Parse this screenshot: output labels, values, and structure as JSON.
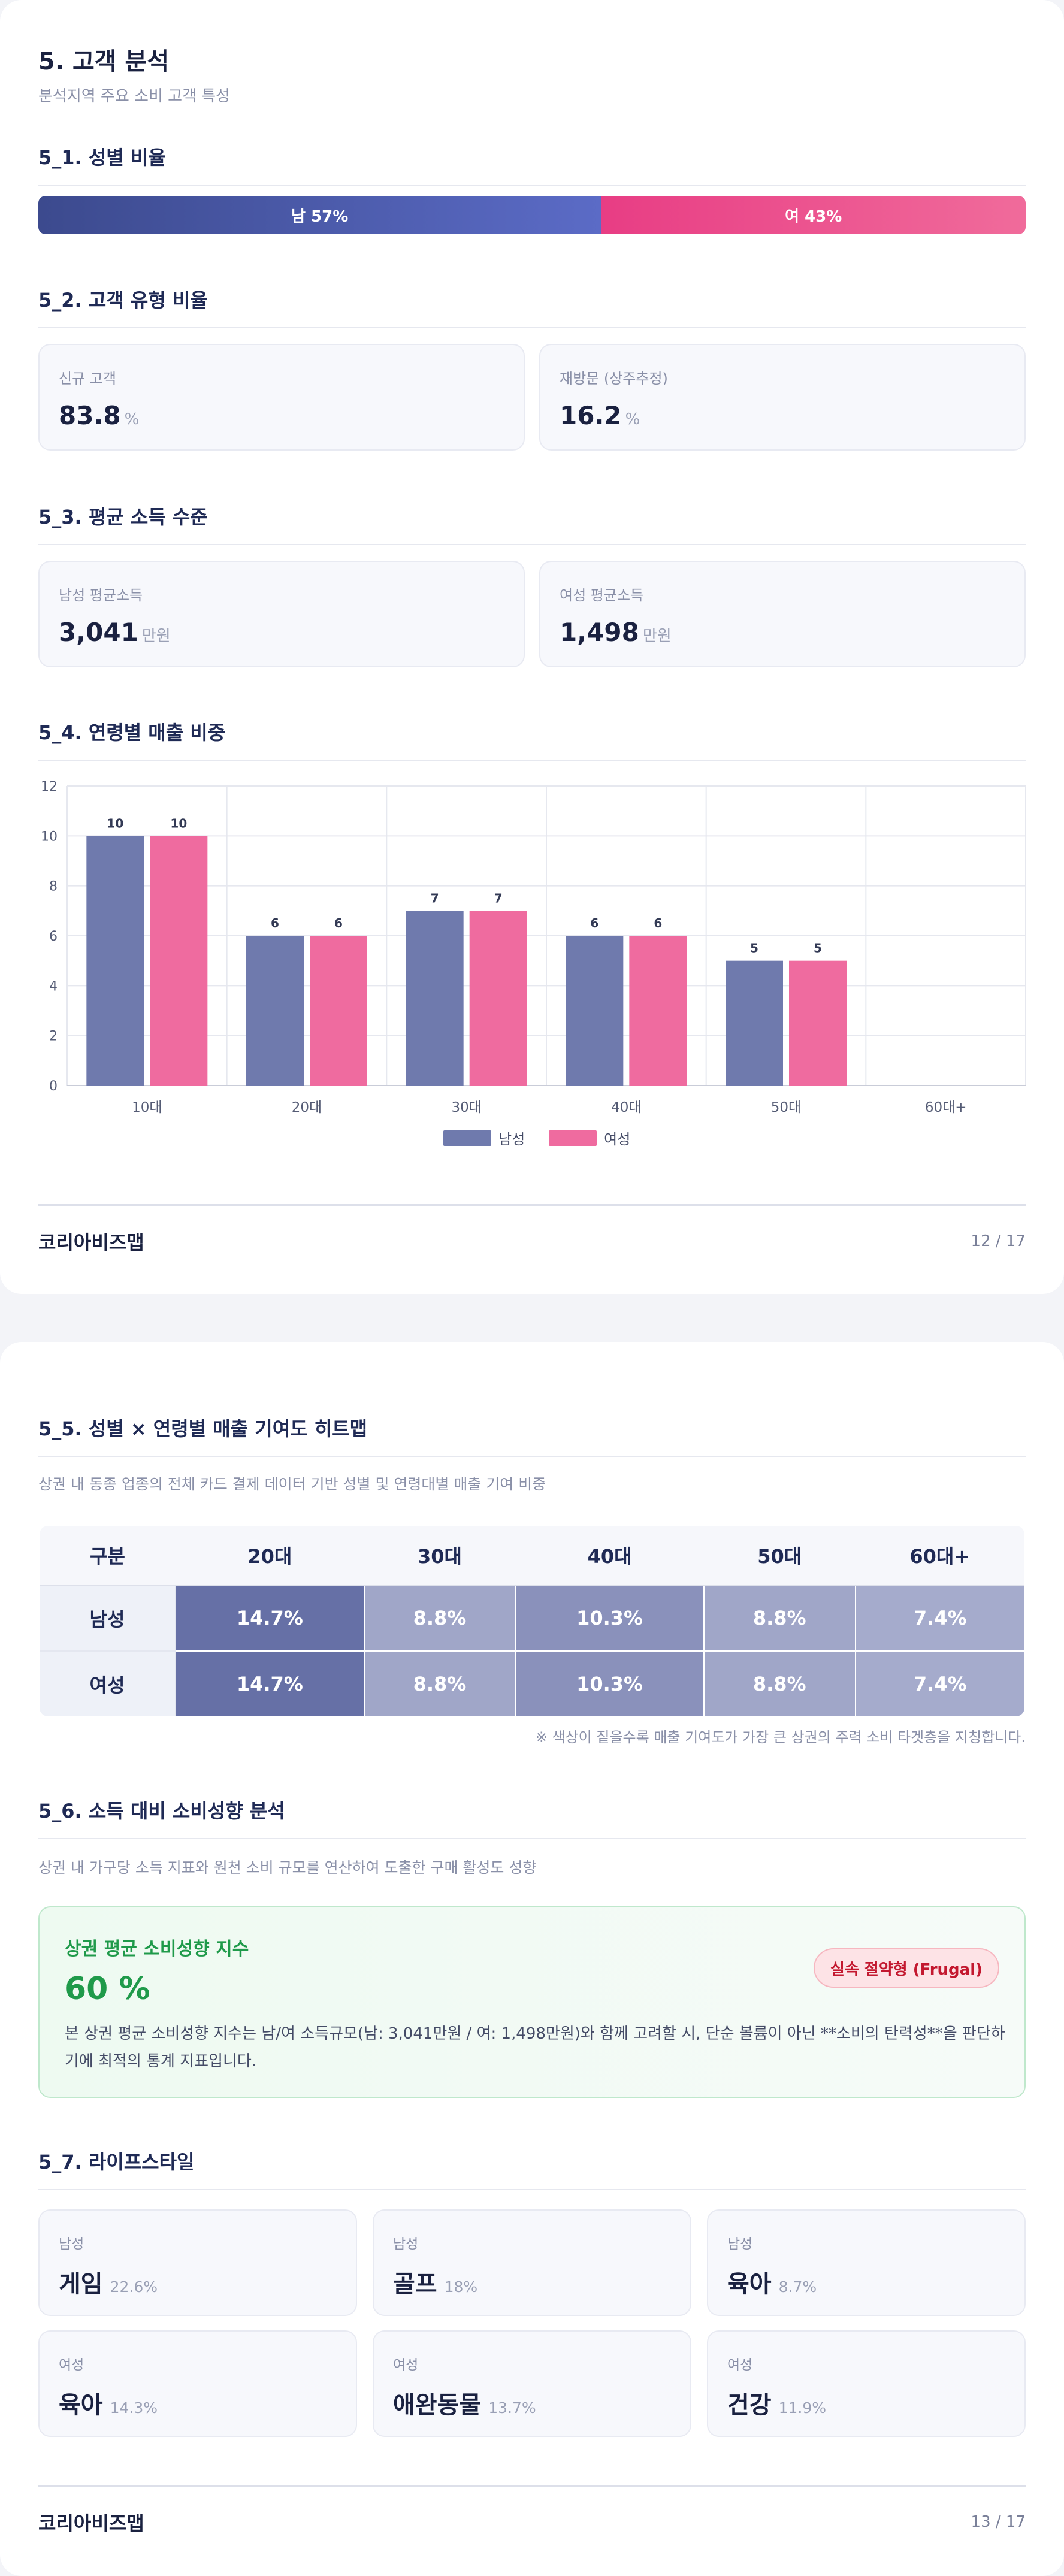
{
  "page1": {
    "title": "5. 고객 분석",
    "subtitle": "분석지역 주요 소비 고객 특성",
    "gender": {
      "title": "5_1. 성별 비율",
      "male_label": "남 57%",
      "female_label": "여 43%",
      "male_share": 57,
      "female_share": 43
    },
    "customer_type": {
      "title": "5_2. 고객 유형 비율",
      "cards": [
        {
          "label": "신규 고객",
          "value": "83.8",
          "unit": "%"
        },
        {
          "label": "재방문 (상주추정)",
          "value": "16.2",
          "unit": "%"
        }
      ]
    },
    "income": {
      "title": "5_3. 평균 소득 수준",
      "cards": [
        {
          "label": "남성 평균소득",
          "value": "3,041",
          "unit": "만원"
        },
        {
          "label": "여성 평균소득",
          "value": "1,498",
          "unit": "만원"
        }
      ]
    },
    "age_sales": {
      "title": "5_4. 연령별 매출 비중"
    },
    "footer": {
      "brand": "코리아비즈맵",
      "page": "12 / 17"
    }
  },
  "chart_data": {
    "type": "bar",
    "categories": [
      "10대",
      "20대",
      "30대",
      "40대",
      "50대",
      "60대+"
    ],
    "series": [
      {
        "name": "남성",
        "values": [
          10,
          6,
          7,
          6,
          5,
          0
        ],
        "labels": [
          "10",
          "6",
          "7",
          "6",
          "5",
          ""
        ],
        "color": "#6f7aad"
      },
      {
        "name": "여성",
        "values": [
          10,
          6,
          7,
          6,
          5,
          0
        ],
        "labels": [
          "10",
          "6",
          "7",
          "6",
          "5",
          ""
        ],
        "color": "#ef6b9f"
      }
    ],
    "ylim": [
      0,
      12
    ],
    "yticks": [
      0,
      2,
      4,
      6,
      8,
      10,
      12
    ],
    "xlabel": "",
    "ylabel": "",
    "grid": true,
    "legend": "bottom-center"
  },
  "page2": {
    "heatmap": {
      "title": "5_5. 성별 × 연령별 매출 기여도 히트맵",
      "desc": "상권 내 동종 업종의 전체 카드 결제 데이터 기반 성별 및 연령대별 매출 기여 비중",
      "corner": "구분",
      "columns": [
        "20대",
        "30대",
        "40대",
        "50대",
        "60대+"
      ],
      "rows": [
        {
          "label": "남성",
          "cells": [
            "14.7%",
            "8.8%",
            "10.3%",
            "8.8%",
            "7.4%"
          ],
          "colors": [
            "#6670a6",
            "#a0a6c8",
            "#8a91bb",
            "#a0a6c8",
            "#a5abcc"
          ]
        },
        {
          "label": "여성",
          "cells": [
            "14.7%",
            "8.8%",
            "10.3%",
            "8.8%",
            "7.4%"
          ],
          "colors": [
            "#6670a6",
            "#a0a6c8",
            "#8a91bb",
            "#a0a6c8",
            "#a5abcc"
          ]
        }
      ],
      "note": "※ 색상이 짙을수록 매출 기여도가 가장 큰 상권의 주력 소비 타겟층을 지칭합니다."
    },
    "spending": {
      "title": "5_6. 소득 대비 소비성향 분석",
      "desc": "상권 내 가구당 소득 지표와 원천 소비 규모를 연산하여 도출한 구매 활성도 성향",
      "card_title": "상권 평균 소비성향 지수",
      "card_value": "60 %",
      "badge": "실속 절약형 (Frugal)",
      "card_desc": "본 상권 평균 소비성향 지수는 남/여 소득규모(남: 3,041만원 / 여: 1,498만원)와 함께 고려할 시, 단순 볼륨이 아닌 **소비의 탄력성**을 판단하기에 최적의 통계 지표입니다."
    },
    "lifestyle": {
      "title": "5_7. 라이프스타일",
      "cards": [
        {
          "gender": "남성",
          "name": "게임",
          "pct": "22.6%"
        },
        {
          "gender": "남성",
          "name": "골프",
          "pct": "18%"
        },
        {
          "gender": "남성",
          "name": "육아",
          "pct": "8.7%"
        },
        {
          "gender": "여성",
          "name": "육아",
          "pct": "14.3%"
        },
        {
          "gender": "여성",
          "name": "애완동물",
          "pct": "13.7%"
        },
        {
          "gender": "여성",
          "name": "건강",
          "pct": "11.9%"
        }
      ]
    },
    "footer": {
      "brand": "코리아비즈맵",
      "page": "13 / 17"
    }
  }
}
